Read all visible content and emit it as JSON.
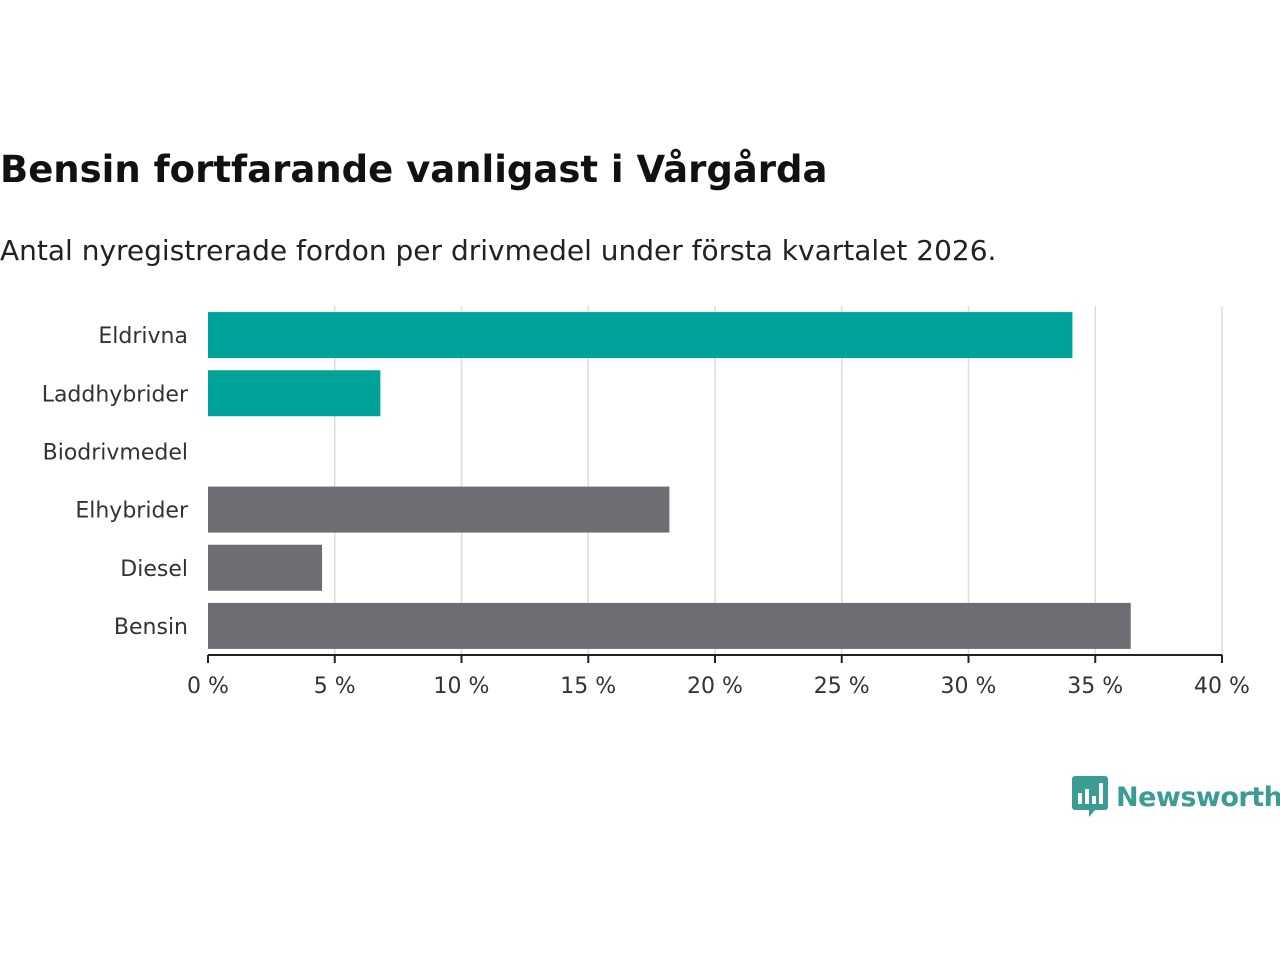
{
  "title": "Bensin fortfarande vanligast i Vårgårda",
  "subtitle": "Antal nyregistrerade fordon per drivmedel under första kvartalet 2026.",
  "brand": {
    "name": "Newsworthy",
    "color": "#3b9c93",
    "icon": "bar-chart-speech-icon"
  },
  "colors": {
    "highlight": "#00a39a",
    "default": "#6d6d73",
    "grid": "#dddddd",
    "axis": "#222222"
  },
  "chart_data": {
    "type": "bar",
    "orientation": "horizontal",
    "title": "Bensin fortfarande vanligast i Vårgårda",
    "subtitle": "Antal nyregistrerade fordon per drivmedel under första kvartalet 2026.",
    "categories": [
      "Eldrivna",
      "Laddhybrider",
      "Biodrivmedel",
      "Elhybrider",
      "Diesel",
      "Bensin"
    ],
    "values": [
      34.1,
      6.8,
      0,
      18.2,
      4.5,
      36.4
    ],
    "highlight": [
      true,
      true,
      false,
      false,
      false,
      false
    ],
    "xlim": [
      0,
      40
    ],
    "xticks": [
      0,
      5,
      10,
      15,
      20,
      25,
      30,
      35,
      40
    ],
    "xtick_labels": [
      "0 %",
      "5 %",
      "10 %",
      "15 %",
      "20 %",
      "25 %",
      "30 %",
      "35 %",
      "40 %"
    ],
    "xlabel": "",
    "ylabel": "",
    "grid": true
  }
}
